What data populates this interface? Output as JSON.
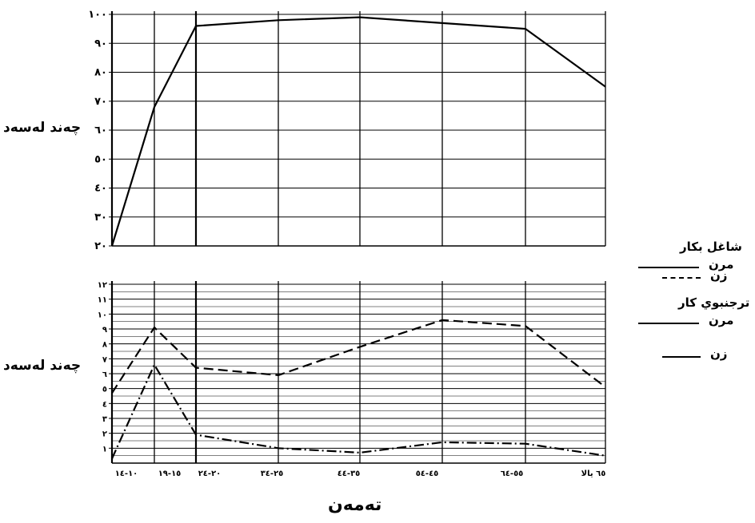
{
  "labels": {
    "upper_ylabel": "چەند لەسەد",
    "lower_ylabel": "چەند لەسەد",
    "xlabel": "تەمەن"
  },
  "legend": {
    "group1_title": "شاغل بكار",
    "group2_title": "ترجنبوي كار",
    "men": "مرن",
    "women": "زن"
  },
  "chart_data": [
    {
      "type": "line",
      "categories": [
        "١٠-١٤",
        "١٥-١٩",
        "٢٠-٢٤",
        "٢٥-٣٤",
        "٣٥-٤٤",
        "٤٥-٥٤",
        "٥٥-٦٤",
        "٦٥ يالا"
      ],
      "series": [
        {
          "name": "مرن",
          "values": [
            20,
            68,
            96,
            98,
            99,
            97,
            95,
            75
          ],
          "style": "solid"
        }
      ],
      "ylim": [
        20,
        100
      ],
      "yticks": [
        "٢٠",
        "٣٠",
        "٤٠",
        "٥٠",
        "٦٠",
        "٧٠",
        "٨٠",
        "٩٠",
        "١٠٠"
      ],
      "ylabel": "چەند لەسەد",
      "grid": true
    },
    {
      "type": "line",
      "categories": [
        "١٠-١٤",
        "١٥-١٩",
        "٢٠-٢٤",
        "٢٥-٣٤",
        "٣٥-٤٤",
        "٤٥-٥٤",
        "٥٥-٦٤",
        "٦٥ يالا"
      ],
      "series": [
        {
          "name": "مرن",
          "values": [
            4.7,
            9.1,
            6.4,
            5.9,
            7.8,
            9.6,
            9.2,
            5.1
          ],
          "style": "dashed"
        },
        {
          "name": "زن",
          "values": [
            0.3,
            6.6,
            1.9,
            1.0,
            0.7,
            1.4,
            1.3,
            0.5
          ],
          "style": "dashdot"
        }
      ],
      "ylim": [
        0,
        12
      ],
      "yticks": [
        "١",
        "٢",
        "٣",
        "٤",
        "٥",
        "٦",
        "٧",
        "٨",
        "٩",
        "١٠",
        "١١",
        "١٢"
      ],
      "xticks": [
        "١٠-١٤",
        "١٥-١٩",
        "٢٠-٢٤",
        "٢٥-٣٤",
        "٣٥-٤٤",
        "٤٥-٥٤",
        "٥٥-٦٤",
        "٦٥ يالا"
      ],
      "ylabel": "چەند لەسەد",
      "xlabel": "تەمەن",
      "grid": true
    }
  ]
}
